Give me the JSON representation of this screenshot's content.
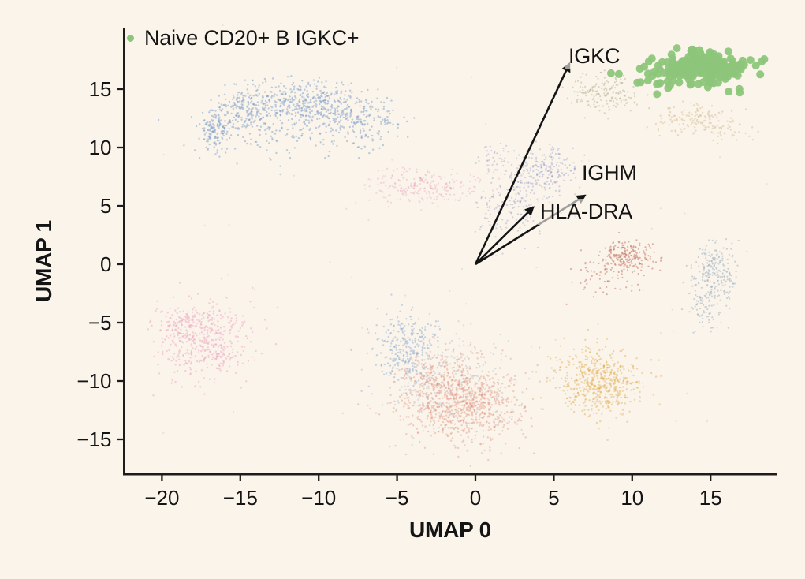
{
  "figure": {
    "background_color": "#faf4eb",
    "text_color": "#141414",
    "axis_color": "#1c1c1c"
  },
  "chart_data": {
    "type": "scatter",
    "title": "",
    "xlabel": "UMAP 0",
    "ylabel": "UMAP 1",
    "xlim": [
      -22.4,
      19.2
    ],
    "ylim": [
      -18.0,
      20.3
    ],
    "xticks": [
      -20,
      -15,
      -10,
      -5,
      0,
      5,
      10,
      15
    ],
    "yticks": [
      15,
      10,
      5,
      0,
      -5,
      -10,
      -15
    ],
    "grid": false,
    "legend_position": "upper-left-inside",
    "legend_entries": [
      {
        "label": "Naive CD20+ B IGKC+",
        "color": "#8dc67a"
      }
    ],
    "annotations": {
      "description": "gene loading arrows drawn from origin (0,0)",
      "arrows": [
        {
          "label": "IGKC",
          "from": [
            0,
            0
          ],
          "to": [
            6.0,
            17.2
          ],
          "label_pos": [
            6.2,
            17.7
          ]
        },
        {
          "label": "IGHM",
          "from": [
            0,
            0
          ],
          "to": [
            7.0,
            5.9
          ],
          "label_pos": [
            7.1,
            7.8
          ]
        },
        {
          "label": "HLA-DRA",
          "from": [
            0,
            0
          ],
          "to": [
            3.7,
            4.9
          ],
          "label_pos": [
            4.4,
            4.5
          ]
        }
      ]
    },
    "clusters": [
      {
        "name": "blue-crescent-upper-left",
        "color": "#7d9fc9",
        "opacity": 0.5,
        "r": 1.2,
        "highlighted": false,
        "blobs": [
          {
            "x": -16.6,
            "y": 11.6,
            "sx": 0.5,
            "sy": 0.9,
            "n": 140
          },
          {
            "x": -14.6,
            "y": 13.2,
            "sx": 1.0,
            "sy": 1.0,
            "n": 190
          },
          {
            "x": -11.8,
            "y": 14.0,
            "sx": 1.5,
            "sy": 0.95,
            "n": 230
          },
          {
            "x": -9.2,
            "y": 13.5,
            "sx": 1.4,
            "sy": 1.0,
            "n": 190
          },
          {
            "x": -6.9,
            "y": 12.3,
            "sx": 1.2,
            "sy": 1.0,
            "n": 130
          },
          {
            "x": -11.5,
            "y": 11.3,
            "sx": 3.2,
            "sy": 1.2,
            "n": 150
          }
        ]
      },
      {
        "name": "pink-lower-left",
        "color": "#ee9fbe",
        "opacity": 0.45,
        "r": 1.2,
        "highlighted": false,
        "blobs": [
          {
            "x": -17.3,
            "y": -6.6,
            "sx": 1.5,
            "sy": 1.8,
            "n": 430
          },
          {
            "x": -18.6,
            "y": -5.2,
            "sx": 0.7,
            "sy": 0.8,
            "n": 80
          }
        ]
      },
      {
        "name": "blue-small-bottom",
        "color": "#87a9d0",
        "opacity": 0.45,
        "r": 1.2,
        "highlighted": false,
        "blobs": [
          {
            "x": -4.5,
            "y": -7.2,
            "sx": 1.05,
            "sy": 1.5,
            "n": 280
          }
        ]
      },
      {
        "name": "grey-mix-bottom",
        "color": "#94aac4",
        "opacity": 0.3,
        "r": 1.2,
        "highlighted": false,
        "blobs": [
          {
            "x": -1.6,
            "y": -10.3,
            "sx": 2.2,
            "sy": 2.0,
            "n": 260
          }
        ]
      },
      {
        "name": "salmon-bottom-center",
        "color": "#e08b76",
        "opacity": 0.38,
        "r": 1.2,
        "highlighted": false,
        "blobs": [
          {
            "x": -0.7,
            "y": -11.9,
            "sx": 1.9,
            "sy": 1.8,
            "n": 850
          },
          {
            "x": -2.6,
            "y": -9.8,
            "sx": 1.2,
            "sy": 1.2,
            "n": 150
          }
        ]
      },
      {
        "name": "yellow-bottom-right",
        "color": "#dfa63f",
        "opacity": 0.4,
        "r": 1.2,
        "highlighted": false,
        "blobs": [
          {
            "x": 7.9,
            "y": -10.0,
            "sx": 1.35,
            "sy": 1.45,
            "n": 520
          }
        ]
      },
      {
        "name": "brick-red-right",
        "color": "#bf6e5c",
        "opacity": 0.5,
        "r": 1.1,
        "highlighted": false,
        "blobs": [
          {
            "x": 9.7,
            "y": 0.6,
            "sx": 0.85,
            "sy": 0.75,
            "n": 200
          },
          {
            "x": 8.4,
            "y": -1.2,
            "sx": 1.2,
            "sy": 0.9,
            "n": 55
          }
        ]
      },
      {
        "name": "steel-blue-far-right",
        "color": "#a4b6c4",
        "opacity": 0.55,
        "r": 1.1,
        "highlighted": false,
        "blobs": [
          {
            "x": 15.3,
            "y": -0.9,
            "sx": 0.75,
            "sy": 1.2,
            "n": 230
          },
          {
            "x": 14.6,
            "y": -3.8,
            "sx": 0.7,
            "sy": 0.9,
            "n": 70
          }
        ]
      },
      {
        "name": "olive-top-center",
        "color": "#a3a87e",
        "opacity": 0.4,
        "r": 1.1,
        "highlighted": false,
        "blobs": [
          {
            "x": 8.2,
            "y": 14.7,
            "sx": 1.05,
            "sy": 0.8,
            "n": 170
          }
        ]
      },
      {
        "name": "tan-under-green",
        "color": "#d5b98a",
        "opacity": 0.45,
        "r": 1.2,
        "highlighted": false,
        "blobs": [
          {
            "x": 13.8,
            "y": 12.4,
            "sx": 1.25,
            "sy": 0.6,
            "n": 120
          },
          {
            "x": 15.9,
            "y": 11.3,
            "sx": 0.8,
            "sy": 0.5,
            "n": 40
          }
        ]
      },
      {
        "name": "pink-band-mid-left",
        "color": "#e79ab8",
        "opacity": 0.35,
        "r": 1.1,
        "highlighted": false,
        "blobs": [
          {
            "x": -3.4,
            "y": 6.6,
            "sx": 1.85,
            "sy": 0.8,
            "n": 250
          }
        ]
      },
      {
        "name": "lavender-center",
        "color": "#8e96c8",
        "opacity": 0.38,
        "r": 1.1,
        "highlighted": false,
        "blobs": [
          {
            "x": 4.4,
            "y": 7.9,
            "sx": 0.95,
            "sy": 1.0,
            "n": 230
          },
          {
            "x": 2.4,
            "y": 4.9,
            "sx": 1.2,
            "sy": 1.3,
            "n": 150
          },
          {
            "x": 1.4,
            "y": 9.0,
            "sx": 0.6,
            "sy": 0.6,
            "n": 40
          }
        ]
      },
      {
        "name": "background-strays",
        "color": "#c4ae92",
        "opacity": 0.28,
        "r": 1.1,
        "highlighted": false,
        "blobs": [
          {
            "x": 0,
            "y": 0,
            "sx": 12,
            "sy": 9,
            "n": 70
          }
        ]
      },
      {
        "name": "naive-cd20-b-igkc-highlighted",
        "color": "#8dc67a",
        "opacity": 0.95,
        "r": 5,
        "highlighted": true,
        "blobs": [
          {
            "x": 14.4,
            "y": 17.0,
            "sx": 1.5,
            "sy": 0.62,
            "n": 200
          },
          {
            "x": 13.6,
            "y": 15.4,
            "sx": 1.9,
            "sy": 0.5,
            "n": 20
          },
          {
            "x": 10.9,
            "y": 16.1,
            "sx": 0.45,
            "sy": 0.55,
            "n": 7
          }
        ]
      }
    ]
  }
}
